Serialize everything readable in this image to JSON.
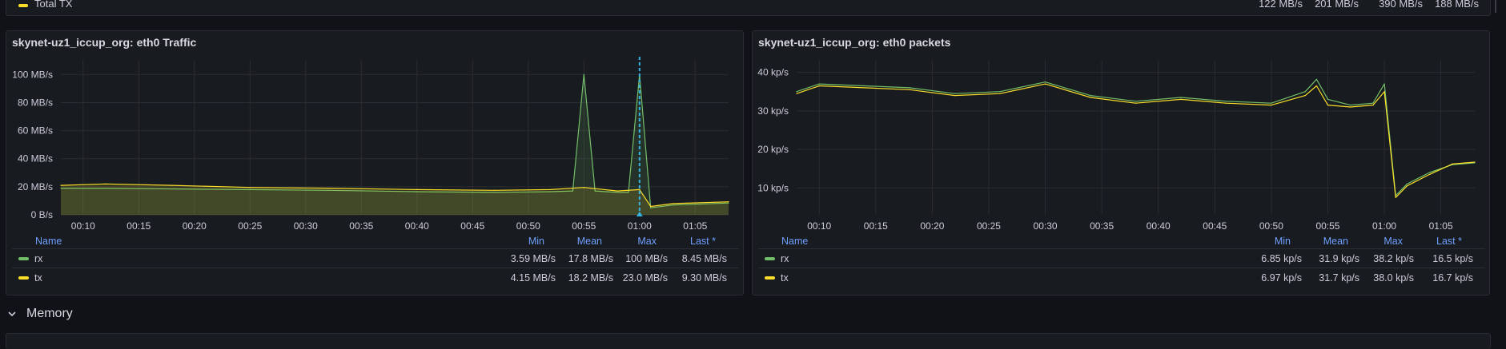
{
  "top_row": {
    "label": "Total TX",
    "color": "#fade2a",
    "values": [
      "122 MB/s",
      "201 MB/s",
      "390 MB/s",
      "188 MB/s"
    ]
  },
  "panels": [
    {
      "id": "traffic",
      "title": "skynet-uz1_iccup_org: eth0 Traffic",
      "legend": {
        "headers": [
          "Name",
          "Min",
          "Mean",
          "Max",
          "Last *"
        ],
        "rows": [
          {
            "name": "rx",
            "color": "#73bf69",
            "min": "3.59 MB/s",
            "mean": "17.8 MB/s",
            "max": "100 MB/s",
            "last": "8.45 MB/s"
          },
          {
            "name": "tx",
            "color": "#fade2a",
            "min": "4.15 MB/s",
            "mean": "18.2 MB/s",
            "max": "23.0 MB/s",
            "last": "9.30 MB/s"
          }
        ]
      }
    },
    {
      "id": "packets",
      "title": "skynet-uz1_iccup_org: eth0 packets",
      "legend": {
        "headers": [
          "Name",
          "Min",
          "Mean",
          "Max",
          "Last *"
        ],
        "rows": [
          {
            "name": "rx",
            "color": "#73bf69",
            "min": "6.85 kp/s",
            "mean": "31.9 kp/s",
            "max": "38.2 kp/s",
            "last": "16.5 kp/s"
          },
          {
            "name": "tx",
            "color": "#fade2a",
            "min": "6.97 kp/s",
            "mean": "31.7 kp/s",
            "max": "38.0 kp/s",
            "last": "16.7 kp/s"
          }
        ]
      }
    }
  ],
  "chart_data": [
    {
      "type": "area",
      "x_ticks": [
        "00:10",
        "00:15",
        "00:20",
        "00:25",
        "00:30",
        "00:35",
        "00:40",
        "00:45",
        "00:50",
        "00:55",
        "01:00",
        "01:05"
      ],
      "y_ticks": [
        "0 B/s",
        "20 MB/s",
        "40 MB/s",
        "60 MB/s",
        "80 MB/s",
        "100 MB/s"
      ],
      "ylim": [
        0,
        107
      ],
      "x_range": [
        "00:08",
        "01:08"
      ],
      "grid": true,
      "cursor_x": "01:00",
      "series": [
        {
          "name": "rx",
          "color": "#73bf69",
          "x": [
            "00:08",
            "00:12",
            "00:18",
            "00:25",
            "00:32",
            "00:40",
            "00:47",
            "00:52",
            "00:54",
            "00:55",
            "00:56",
            "00:58",
            "00:59",
            "01:00",
            "01:01",
            "01:03",
            "01:08"
          ],
          "y": [
            19,
            19,
            18.5,
            18,
            17.5,
            16.5,
            16,
            16.5,
            17,
            100,
            17,
            16,
            16,
            100,
            5,
            7,
            8.45
          ]
        },
        {
          "name": "tx",
          "color": "#fade2a",
          "x": [
            "00:08",
            "00:12",
            "00:18",
            "00:25",
            "00:32",
            "00:40",
            "00:47",
            "00:52",
            "00:55",
            "00:58",
            "01:00",
            "01:01",
            "01:03",
            "01:08"
          ],
          "y": [
            21,
            22,
            21,
            19.5,
            19,
            18,
            17.5,
            18,
            19.5,
            17,
            18,
            6,
            8,
            9.3
          ]
        }
      ]
    },
    {
      "type": "line",
      "x_ticks": [
        "00:10",
        "00:15",
        "00:20",
        "00:25",
        "00:30",
        "00:35",
        "00:40",
        "00:45",
        "00:50",
        "00:55",
        "01:00",
        "01:05"
      ],
      "y_ticks": [
        "10 kp/s",
        "20 kp/s",
        "30 kp/s",
        "40 kp/s"
      ],
      "ylim": [
        3,
        42
      ],
      "x_range": [
        "00:08",
        "01:08"
      ],
      "grid": true,
      "series": [
        {
          "name": "rx",
          "color": "#73bf69",
          "x": [
            "00:08",
            "00:10",
            "00:14",
            "00:18",
            "00:22",
            "00:26",
            "00:30",
            "00:34",
            "00:38",
            "00:42",
            "00:46",
            "00:50",
            "00:53",
            "00:54",
            "00:55",
            "00:57",
            "00:59",
            "01:00",
            "01:01",
            "01:02",
            "01:04",
            "01:06",
            "01:08"
          ],
          "y": [
            35,
            37,
            36.5,
            36,
            34.5,
            35,
            37.5,
            34,
            32.5,
            33.5,
            32.5,
            32,
            35,
            38.2,
            33,
            31.5,
            32,
            37,
            8,
            11,
            14,
            16,
            16.5
          ]
        },
        {
          "name": "tx",
          "color": "#fade2a",
          "x": [
            "00:08",
            "00:10",
            "00:14",
            "00:18",
            "00:22",
            "00:26",
            "00:30",
            "00:34",
            "00:38",
            "00:42",
            "00:46",
            "00:50",
            "00:53",
            "00:54",
            "00:55",
            "00:57",
            "00:59",
            "01:00",
            "01:01",
            "01:02",
            "01:04",
            "01:06",
            "01:08"
          ],
          "y": [
            34.5,
            36.5,
            36,
            35.5,
            34,
            34.5,
            37,
            33.5,
            32,
            33,
            32,
            31.5,
            34,
            36.5,
            31.5,
            31,
            31.5,
            35,
            7.5,
            10.5,
            13.5,
            16.2,
            16.7
          ]
        }
      ]
    }
  ]
}
